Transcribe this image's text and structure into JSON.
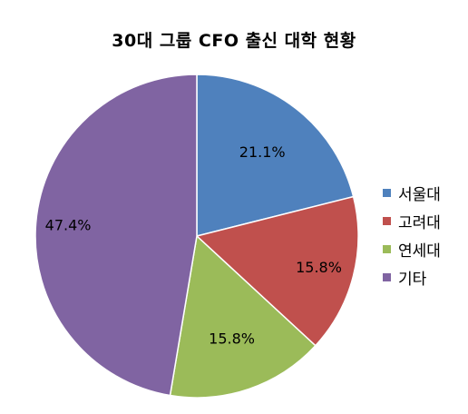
{
  "chart_data": {
    "type": "pie",
    "title": "30대 그룹 CFO 출신 대학 현황",
    "categories": [
      "서울대",
      "고려대",
      "연세대",
      "기타"
    ],
    "values": [
      21.1,
      15.8,
      15.8,
      47.4
    ],
    "data_labels": [
      "21.1%",
      "15.8%",
      "15.8%",
      "47.4%"
    ],
    "colors": [
      "#4F81BD",
      "#C0504D",
      "#9BBB59",
      "#8064A2"
    ],
    "start_angle": "12 o'clock",
    "direction": "clockwise",
    "legend_position": "right"
  }
}
